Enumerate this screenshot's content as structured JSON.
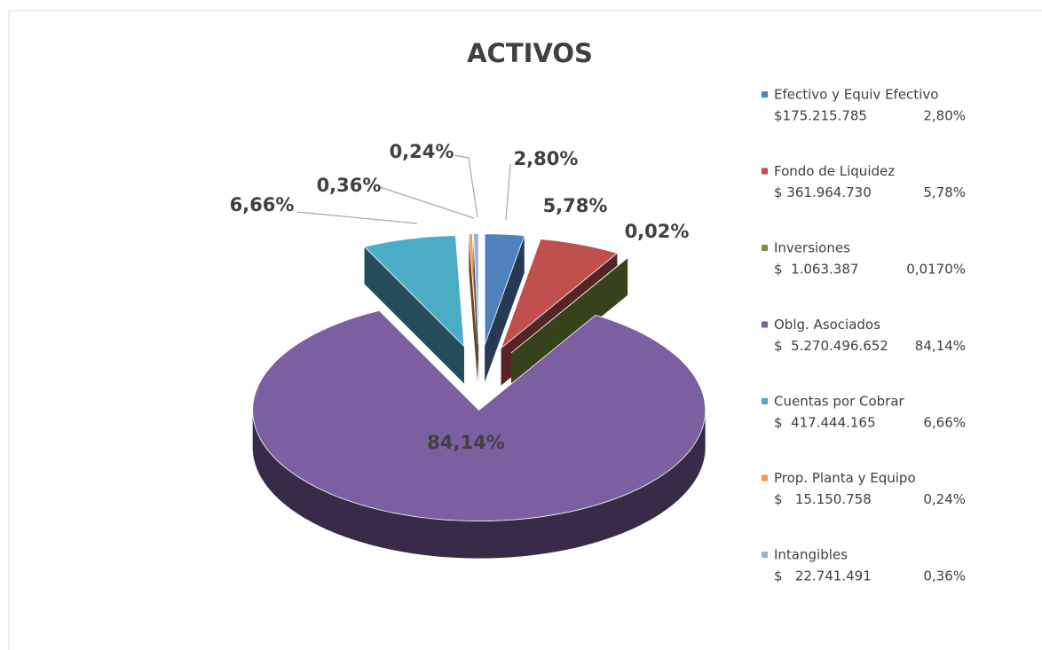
{
  "chart_data": {
    "type": "pie3d",
    "title": "ACTIVOS",
    "categories": [
      "Efectivo y Equiv Efectivo",
      "Fondo de Liquidez",
      "Inversiones",
      "Oblg. Asociados",
      "Cuentas por Cobrar",
      "Prop. Planta y Equipo",
      "Intangibles"
    ],
    "values": [
      2.8,
      5.78,
      0.02,
      84.14,
      6.66,
      0.24,
      0.36
    ],
    "value_labels": [
      "2,80%",
      "5,78%",
      "0,02%",
      "84,14%",
      "6,66%",
      "0,24%",
      "0,36%"
    ],
    "colors": [
      "#4f81bd",
      "#c0504d",
      "#77933c",
      "#7b5fa0",
      "#4bacc6",
      "#f79646",
      "#95b3d7"
    ],
    "legend_amounts": [
      "$175.215.785",
      "$ 361.964.730",
      "$  1.063.387",
      "$  5.270.496.652",
      "$  417.444.165",
      "$   15.150.758",
      "$   22.741.491"
    ],
    "legend_percents": [
      "2,80%",
      "5,78%",
      "0,0170%",
      "84,14%",
      "6,66%",
      "0,24%",
      "0,36%"
    ],
    "legend": "right"
  }
}
